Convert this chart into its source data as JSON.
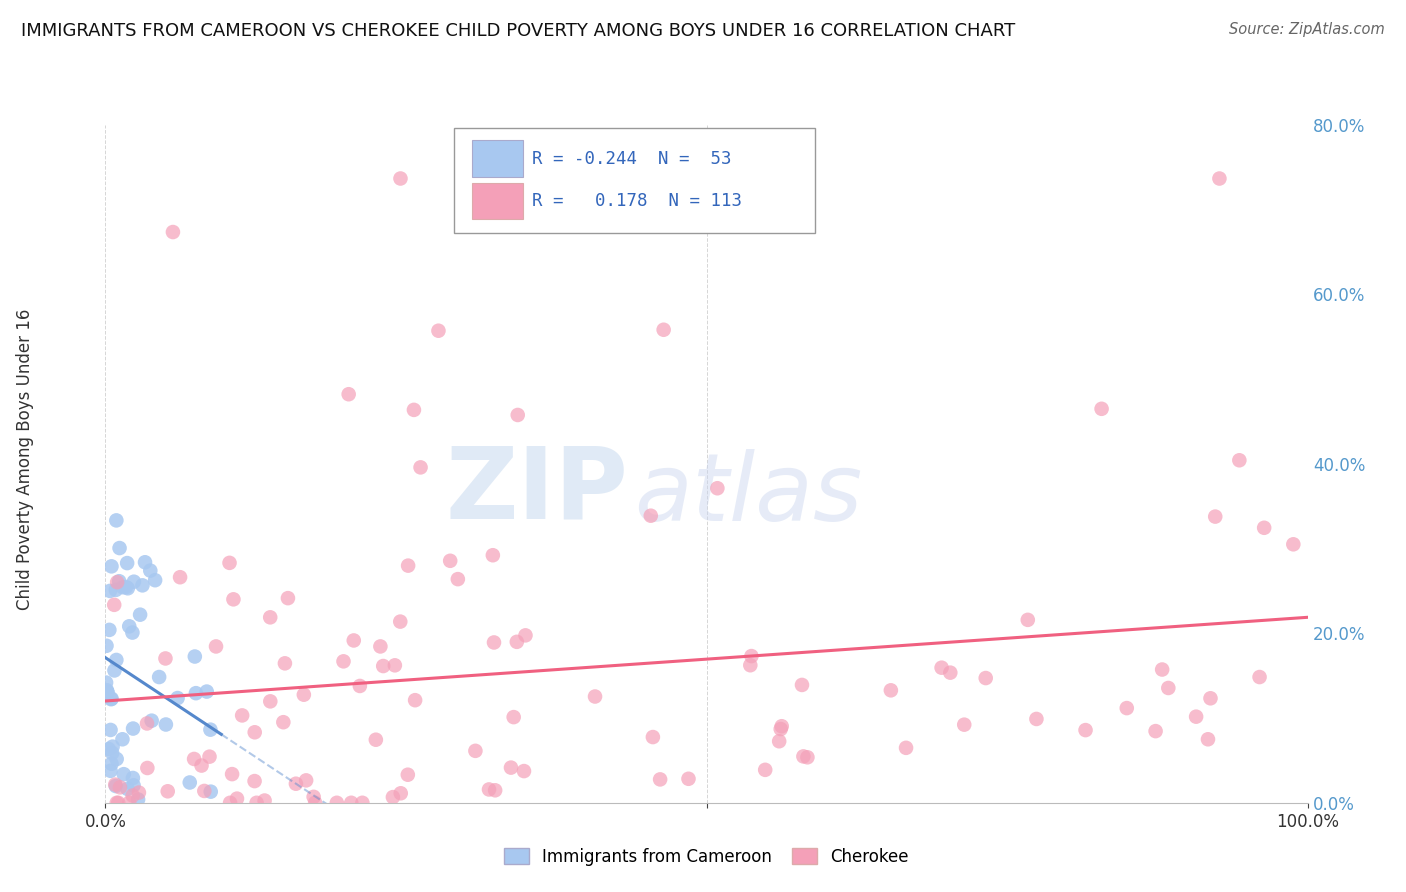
{
  "title": "IMMIGRANTS FROM CAMEROON VS CHEROKEE CHILD POVERTY AMONG BOYS UNDER 16 CORRELATION CHART",
  "source": "Source: ZipAtlas.com",
  "ylabel": "Child Poverty Among Boys Under 16",
  "legend_label1": "Immigrants from Cameroon",
  "legend_label2": "Cherokee",
  "r1": -0.244,
  "n1": 53,
  "r2": 0.178,
  "n2": 113,
  "color1": "#a8c8f0",
  "color2": "#f4a0b8",
  "line1_color": "#5588cc",
  "line2_color": "#f06080",
  "xlim": [
    0.0,
    1.0
  ],
  "ylim": [
    0.0,
    0.8
  ],
  "right_yticks": [
    0.0,
    0.2,
    0.4,
    0.6,
    0.8
  ],
  "right_ytick_labels": [
    "0.0%",
    "20.0%",
    "40.0%",
    "60.0%",
    "80.0%"
  ],
  "xticks": [
    0.0,
    0.5,
    1.0
  ],
  "xtick_labels": [
    "0.0%",
    "",
    "100.0%"
  ],
  "background_color": "#ffffff",
  "grid_color": "#cccccc",
  "legend_r1_text": "R = -0.244  N =  53",
  "legend_r2_text": "R =   0.178  N = 113",
  "seed1": 42,
  "seed2": 77
}
